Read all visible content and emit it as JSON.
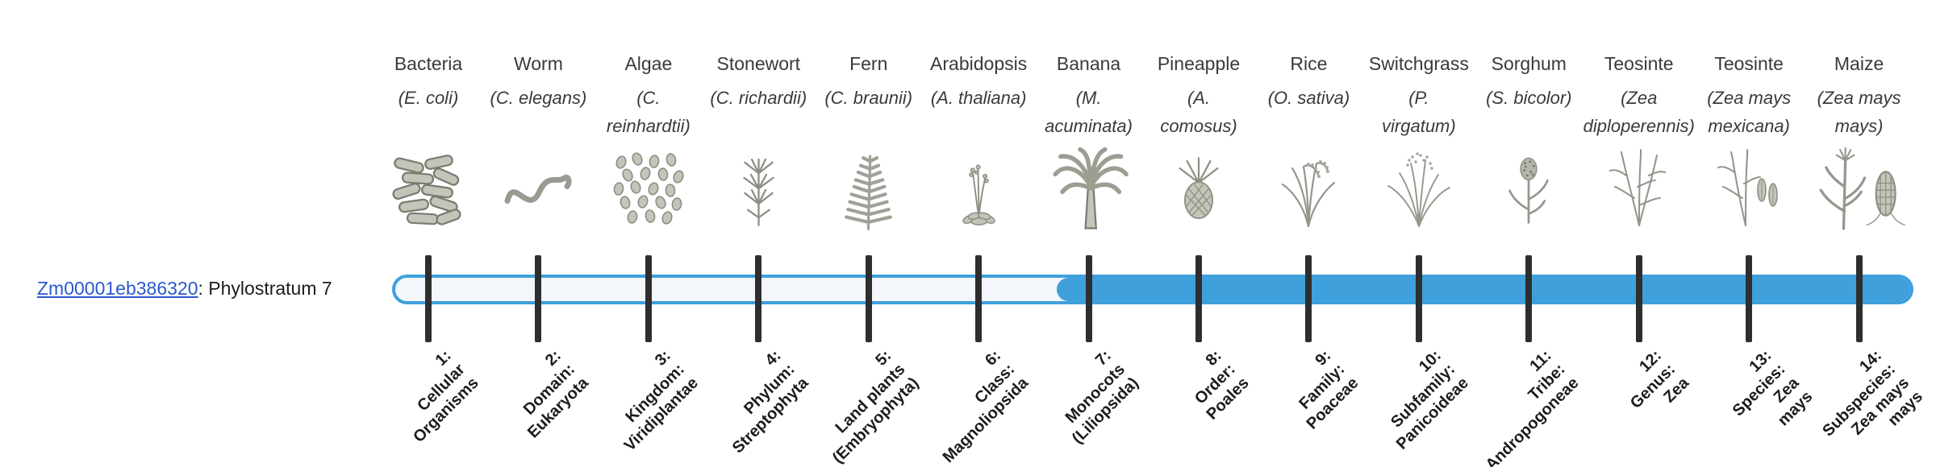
{
  "gene": {
    "id": "Zm00001eb386320",
    "suffix": ": Phylostratum 7"
  },
  "colors": {
    "bar_blue": "#3FA0DC",
    "bar_empty": "#F3F7FB",
    "tick_black": "#2E2E2E",
    "link_blue": "#2A58CF"
  },
  "timeline": {
    "num_strata": 14,
    "filled_from_index": 6,
    "phylostratum": 7
  },
  "organisms": [
    {
      "name": "Bacteria",
      "sci_lines": [
        "(E. coli)"
      ],
      "icon": "bacteria",
      "stratum_lines": [
        "1:",
        "Cellular",
        "Organisms"
      ]
    },
    {
      "name": "Worm",
      "sci_lines": [
        "(C. elegans)"
      ],
      "icon": "worm",
      "stratum_lines": [
        "2:",
        "Domain:",
        "Eukaryota"
      ]
    },
    {
      "name": "Algae",
      "sci_lines": [
        "(C.",
        "reinhardtii)"
      ],
      "icon": "algae",
      "stratum_lines": [
        "3:",
        "Kingdom:",
        "Viridiplantae"
      ]
    },
    {
      "name": "Stonewort",
      "sci_lines": [
        "(C. richardii)"
      ],
      "icon": "stonewort",
      "stratum_lines": [
        "4:",
        "Phylum:",
        "Streptophyta"
      ]
    },
    {
      "name": "Fern",
      "sci_lines": [
        "(C. braunii)"
      ],
      "icon": "fern",
      "stratum_lines": [
        "5:",
        "Land plants",
        "(Embryophyta)"
      ]
    },
    {
      "name": "Arabidopsis",
      "sci_lines": [
        "(A. thaliana)"
      ],
      "icon": "arabidopsis",
      "stratum_lines": [
        "6:",
        "Class:",
        "Magnoliopsida"
      ]
    },
    {
      "name": "Banana",
      "sci_lines": [
        "(M.",
        "acuminata)"
      ],
      "icon": "banana",
      "stratum_lines": [
        "7:",
        "Monocots",
        "(Liliopsida)"
      ]
    },
    {
      "name": "Pineapple",
      "sci_lines": [
        "(A.",
        "comosus)"
      ],
      "icon": "pineapple",
      "stratum_lines": [
        "8:",
        "Order:",
        "Poales"
      ]
    },
    {
      "name": "Rice",
      "sci_lines": [
        "(O. sativa)"
      ],
      "icon": "rice",
      "stratum_lines": [
        "9:",
        "Family:",
        "Poaceae"
      ]
    },
    {
      "name": "Switchgrass",
      "sci_lines": [
        "(P.",
        "virgatum)"
      ],
      "icon": "switchgrass",
      "stratum_lines": [
        "10:",
        "Subfamily:",
        "Panicoideae"
      ]
    },
    {
      "name": "Sorghum",
      "sci_lines": [
        "(S. bicolor)"
      ],
      "icon": "sorghum",
      "stratum_lines": [
        "11:",
        "Tribe:",
        "Andropogoneae"
      ]
    },
    {
      "name": "Teosinte",
      "sci_lines": [
        "(Zea",
        "diploperennis)"
      ],
      "icon": "teosinte-diploperennis",
      "stratum_lines": [
        "12:",
        "Genus:",
        "Zea"
      ]
    },
    {
      "name": "Teosinte",
      "sci_lines": [
        "(Zea mays",
        "mexicana)"
      ],
      "icon": "teosinte-mexicana",
      "stratum_lines": [
        "13:",
        "Species:",
        "Zea",
        "mays"
      ]
    },
    {
      "name": "Maize",
      "sci_lines": [
        "(Zea mays",
        "mays)"
      ],
      "icon": "maize",
      "stratum_lines": [
        "14:",
        "Subspecies:",
        "Zea mays",
        "mays"
      ]
    }
  ]
}
